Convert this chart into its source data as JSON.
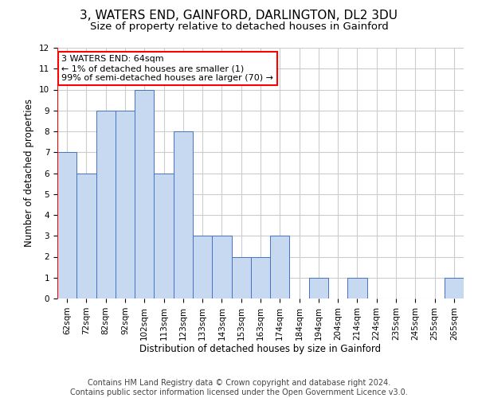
{
  "title_line1": "3, WATERS END, GAINFORD, DARLINGTON, DL2 3DU",
  "title_line2": "Size of property relative to detached houses in Gainford",
  "xlabel": "Distribution of detached houses by size in Gainford",
  "ylabel": "Number of detached properties",
  "categories": [
    "62sqm",
    "72sqm",
    "82sqm",
    "92sqm",
    "102sqm",
    "113sqm",
    "123sqm",
    "133sqm",
    "143sqm",
    "153sqm",
    "163sqm",
    "174sqm",
    "184sqm",
    "194sqm",
    "204sqm",
    "214sqm",
    "224sqm",
    "235sqm",
    "245sqm",
    "255sqm",
    "265sqm"
  ],
  "values": [
    7,
    6,
    9,
    9,
    10,
    6,
    8,
    3,
    3,
    2,
    2,
    3,
    0,
    1,
    0,
    1,
    0,
    0,
    0,
    0,
    1
  ],
  "bar_color": "#c6d9f0",
  "bar_edge_color": "#4472c4",
  "annotation_line1": "3 WATERS END: 64sqm",
  "annotation_line2": "← 1% of detached houses are smaller (1)",
  "annotation_line3": "99% of semi-detached houses are larger (70) →",
  "annotation_box_color": "#ffffff",
  "annotation_box_edge_color": "#ff0000",
  "ylim": [
    0,
    12
  ],
  "yticks": [
    0,
    1,
    2,
    3,
    4,
    5,
    6,
    7,
    8,
    9,
    10,
    11,
    12
  ],
  "footer_line1": "Contains HM Land Registry data © Crown copyright and database right 2024.",
  "footer_line2": "Contains public sector information licensed under the Open Government Licence v3.0.",
  "bg_color": "#ffffff",
  "grid_color": "#cccccc",
  "title_fontsize": 11,
  "subtitle_fontsize": 9.5,
  "axis_label_fontsize": 8.5,
  "tick_fontsize": 7.5,
  "footer_fontsize": 7,
  "annotation_fontsize": 8
}
